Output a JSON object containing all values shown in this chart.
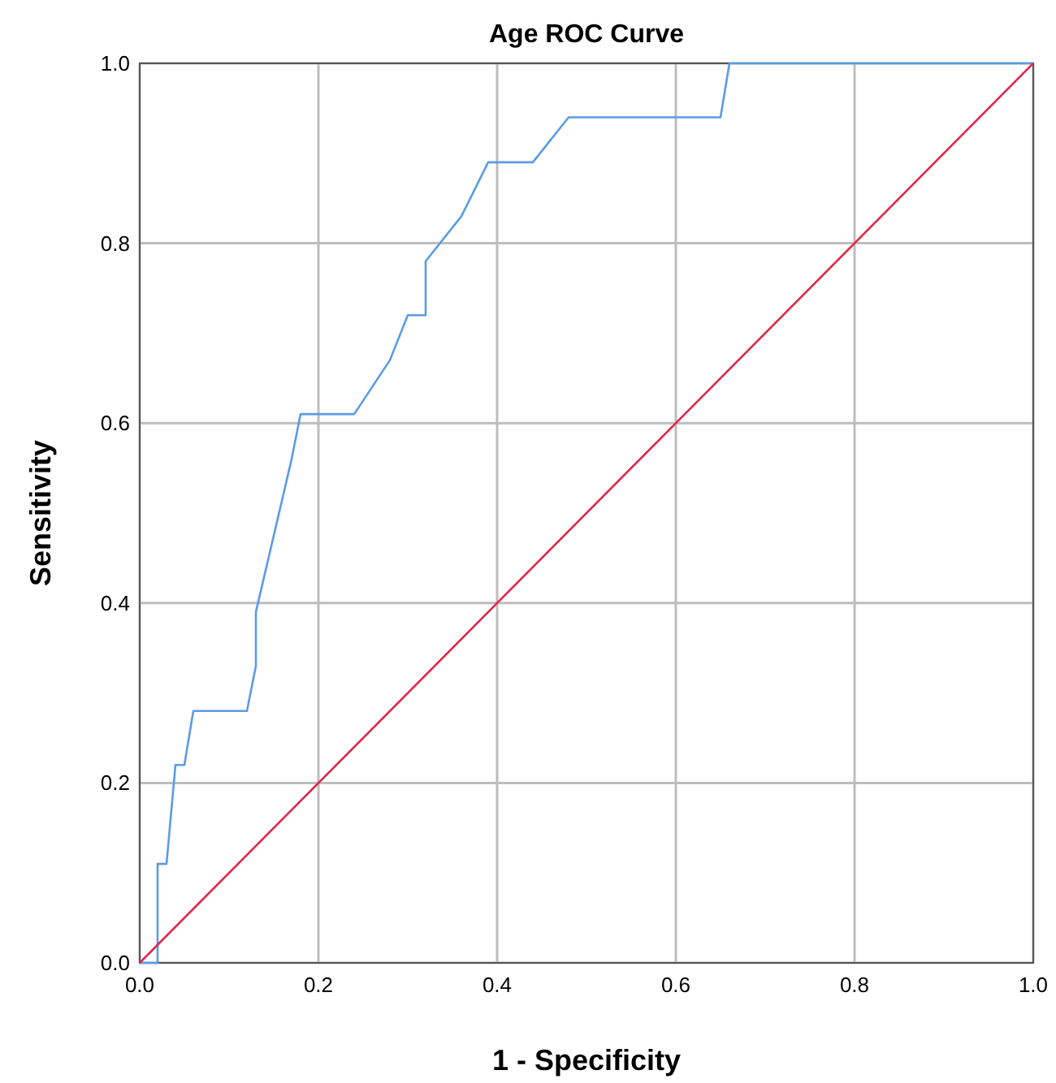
{
  "chart_data": {
    "type": "line",
    "title": "Age ROC Curve",
    "xlabel": "1 - Specificity",
    "ylabel": "Sensitivity",
    "xlim": [
      0,
      1
    ],
    "ylim": [
      0,
      1
    ],
    "xticks": [
      {
        "value": 0,
        "label": "0.0"
      },
      {
        "value": 0.2,
        "label": "0.2"
      },
      {
        "value": 0.4,
        "label": "0.4"
      },
      {
        "value": 0.6,
        "label": "0.6"
      },
      {
        "value": 0.8,
        "label": "0.8"
      },
      {
        "value": 1,
        "label": "1.0"
      }
    ],
    "yticks": [
      {
        "value": 0,
        "label": "0.0"
      },
      {
        "value": 0.2,
        "label": "0.2"
      },
      {
        "value": 0.4,
        "label": "0.4"
      },
      {
        "value": 0.6,
        "label": "0.6"
      },
      {
        "value": 0.8,
        "label": "0.8"
      },
      {
        "value": 1,
        "label": "1.0"
      }
    ],
    "grid": true,
    "marker": "none",
    "line_style": "solid",
    "series": [
      {
        "color": "#5b9be6",
        "x": [
          0,
          0.02,
          0.02,
          0.03,
          0.04,
          0.05,
          0.06,
          0.12,
          0.13,
          0.13,
          0.17,
          0.18,
          0.24,
          0.28,
          0.3,
          0.32,
          0.32,
          0.36,
          0.39,
          0.44,
          0.48,
          0.65,
          0.66,
          1
        ],
        "values": [
          0,
          0,
          0.11,
          0.11,
          0.22,
          0.22,
          0.28,
          0.28,
          0.33,
          0.39,
          0.56,
          0.61,
          0.61,
          0.67,
          0.72,
          0.72,
          0.78,
          0.83,
          0.89,
          0.89,
          0.94,
          0.94,
          1,
          1
        ]
      },
      {
        "color": "#e0284a",
        "x": [
          0,
          1
        ],
        "values": [
          0,
          1
        ]
      }
    ]
  }
}
